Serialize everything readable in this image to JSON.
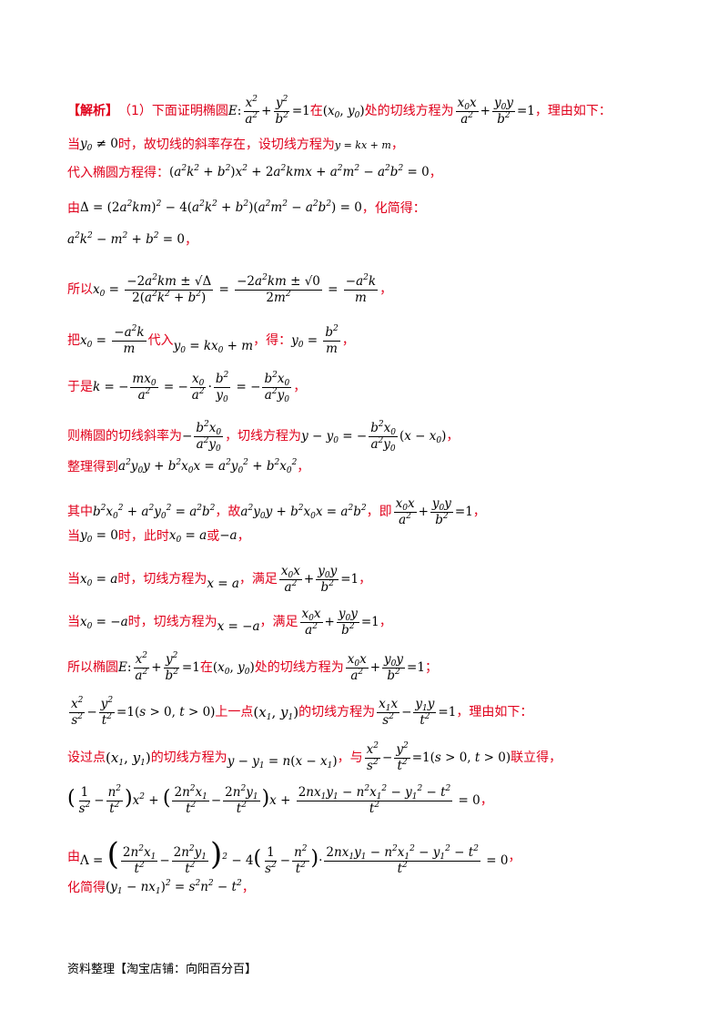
{
  "lines": {
    "l1": {
      "label": "【解析】",
      "part": "（1）下面证明椭圆",
      "t1": "在",
      "t2": "处的切线方程为",
      "t3": "，理由如下："
    },
    "l2": {
      "t1": "当",
      "t2": "时，故切线的斜率存在，设切线方程为"
    },
    "l3": {
      "t1": "代入椭圆方程得："
    },
    "l4": {
      "t1": "由",
      "t2": "，化简得："
    },
    "l6": {
      "t1": "所以"
    },
    "l7": {
      "t1": "把",
      "t2": "代入",
      "t3": "，得："
    },
    "l8": {
      "t1": "于是"
    },
    "l9": {
      "t1": "则椭圆的切线斜率为",
      "t2": "，切线方程为"
    },
    "l10": {
      "t1": "整理得到"
    },
    "l11": {
      "t1": "其中",
      "t2": "，故",
      "t3": "，即"
    },
    "l12": {
      "t1": "当",
      "t2": "时，此时",
      "t3": "或"
    },
    "l13": {
      "t1": "当",
      "t2": "时，切线方程为",
      "t3": "，满足"
    },
    "l14": {
      "t1": "当",
      "t2": "时，切线方程为",
      "t3": "，满足"
    },
    "l15": {
      "t1": "所以椭圆",
      "t2": "在",
      "t3": "处的切线方程为"
    },
    "l16": {
      "t1": "上一点",
      "t2": "的切线方程为",
      "t3": "，理由如下："
    },
    "l17": {
      "t1": "设过点",
      "t2": "的切线方程为",
      "t3": "，与",
      "t4": "联立得，"
    },
    "l19": {
      "t1": "由"
    },
    "l20": {
      "t1": "化简得"
    }
  },
  "footer": "资料整理【淘宝店铺：向阳百分百】"
}
